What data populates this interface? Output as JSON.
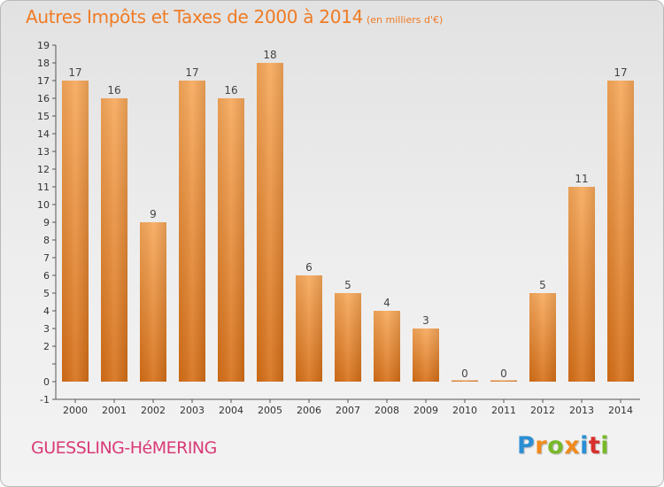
{
  "title": {
    "main": "Autres Impôts et Taxes de 2000 à 2014",
    "unit": "(en milliers d'€)"
  },
  "commune": "GUESSLING-HéMERING",
  "logo": {
    "letters": [
      "P",
      "r",
      "o",
      "x",
      "i",
      "t",
      "i"
    ],
    "colors": [
      "#2a8fd4",
      "#f08a1c",
      "#78b82a",
      "#f08a1c",
      "#2a8fd4",
      "#d9302c",
      "#78b82a"
    ]
  },
  "colors": {
    "title": "#ef7b24",
    "commune": "#d93a78",
    "bar_top": "#f7a85a",
    "bar_bottom": "#d66f17"
  },
  "chart_data": {
    "type": "bar",
    "categories": [
      "2000",
      "2001",
      "2002",
      "2003",
      "2004",
      "2005",
      "2006",
      "2007",
      "2008",
      "2009",
      "2010",
      "2011",
      "2012",
      "2013",
      "2014"
    ],
    "values": [
      17,
      16,
      9,
      17,
      16,
      18,
      6,
      5,
      4,
      3,
      0,
      0,
      5,
      11,
      17
    ],
    "data_labels": [
      "17",
      "16",
      "9",
      "17",
      "16",
      "18",
      "6",
      "5",
      "4",
      "3",
      "0",
      "0",
      "5",
      "11",
      "17"
    ],
    "y_ticks": [
      -1,
      0,
      1,
      2,
      3,
      4,
      5,
      6,
      7,
      8,
      9,
      10,
      11,
      12,
      13,
      14,
      15,
      16,
      17,
      18,
      19
    ],
    "y_tick_labels": [
      "-1",
      "0",
      "",
      "2",
      "3",
      "4",
      "5",
      "6",
      "7",
      "8",
      "9",
      "10",
      "11",
      "12",
      "13",
      "14",
      "15",
      "16",
      "17",
      "18",
      "19"
    ],
    "ylim": [
      -1,
      19
    ],
    "grid": false
  }
}
